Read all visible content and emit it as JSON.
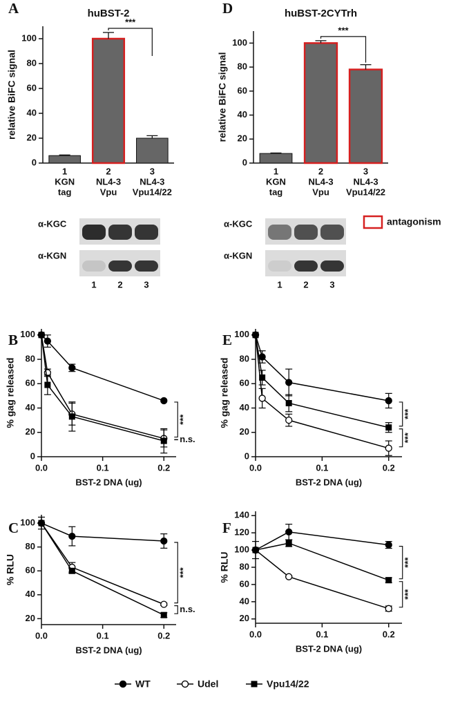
{
  "chart_data": [
    {
      "type": "bar",
      "panel": "A",
      "title": "huBST-2",
      "ylabel": "relative BiFC signal",
      "categories": [
        [
          "1",
          "KGN",
          "tag"
        ],
        [
          "2",
          "NL4-3",
          "Vpu"
        ],
        [
          "3",
          "NL4-3",
          "Vpu14/22"
        ]
      ],
      "values": [
        6,
        100,
        20
      ],
      "errors": [
        0.5,
        5,
        2
      ],
      "color": "#666666",
      "outline": [
        false,
        true,
        false
      ],
      "ylim": [
        0,
        110
      ],
      "yticks": [
        0,
        20,
        40,
        60,
        80,
        100
      ],
      "annotations": [
        {
          "text": "***",
          "between": [
            1,
            2
          ]
        }
      ]
    },
    {
      "type": "bar",
      "panel": "D",
      "title": "huBST-2CYTrh",
      "ylabel": "relative BiFC signal",
      "categories": [
        [
          "1",
          "KGN",
          "tag"
        ],
        [
          "2",
          "NL4-3",
          "Vpu"
        ],
        [
          "3",
          "NL4-3",
          "Vpu14/22"
        ]
      ],
      "values": [
        8,
        100,
        78
      ],
      "errors": [
        0.4,
        2,
        4
      ],
      "color": "#666666",
      "outline": [
        false,
        true,
        true
      ],
      "ylim": [
        0,
        110
      ],
      "yticks": [
        0,
        20,
        40,
        60,
        80,
        100
      ],
      "annotations": [
        {
          "text": "***",
          "between": [
            1,
            2
          ]
        }
      ]
    },
    {
      "type": "line",
      "panel": "B",
      "ylabel": "% gag released",
      "xlabel": "BST-2 DNA (ug)",
      "x": [
        0,
        0.01,
        0.05,
        0.2
      ],
      "series": [
        {
          "name": "WT",
          "marker": "filled-circle",
          "color": "#000000",
          "values": [
            100,
            95,
            73,
            46
          ],
          "errors": [
            0,
            5,
            3,
            0
          ]
        },
        {
          "name": "Udel",
          "marker": "open-circle",
          "color": "#000000",
          "values": [
            100,
            69,
            35,
            15
          ],
          "errors": [
            0,
            3,
            9,
            7
          ]
        },
        {
          "name": "Vpu14/22",
          "marker": "filled-square",
          "color": "#000000",
          "values": [
            100,
            59,
            33,
            13
          ],
          "errors": [
            0,
            8,
            12,
            10
          ]
        }
      ],
      "xlim": [
        0,
        0.22
      ],
      "ylim": [
        0,
        105
      ],
      "xticks": [
        {
          "value": 0,
          "label": "0.0"
        },
        0.1,
        0.2
      ],
      "yticks": [
        0,
        20,
        40,
        60,
        80,
        100
      ],
      "annotations": [
        {
          "text": "***",
          "between": [
            0,
            1
          ]
        },
        {
          "text": "n.s.",
          "between": [
            1,
            2
          ]
        }
      ]
    },
    {
      "type": "line",
      "panel": "E",
      "ylabel": "% gag released",
      "xlabel": "BST-2 DNA (ug)",
      "x": [
        0,
        0.01,
        0.05,
        0.2
      ],
      "series": [
        {
          "name": "WT",
          "marker": "filled-circle",
          "color": "#000000",
          "values": [
            100,
            82,
            61,
            46
          ],
          "errors": [
            0,
            5,
            11,
            6
          ]
        },
        {
          "name": "Udel",
          "marker": "open-circle",
          "color": "#000000",
          "values": [
            100,
            48,
            30,
            7
          ],
          "errors": [
            0,
            8,
            5,
            6
          ]
        },
        {
          "name": "Vpu14/22",
          "marker": "filled-square",
          "color": "#000000",
          "values": [
            100,
            65,
            44,
            24
          ],
          "errors": [
            0,
            6,
            7,
            4
          ]
        }
      ],
      "xlim": [
        0,
        0.22
      ],
      "ylim": [
        0,
        105
      ],
      "xticks": [
        {
          "value": 0,
          "label": "0.0"
        },
        0.1,
        0.2
      ],
      "yticks": [
        0,
        20,
        40,
        60,
        80,
        100
      ],
      "annotations": [
        {
          "text": "***",
          "between": [
            0,
            2
          ]
        },
        {
          "text": "***",
          "between": [
            2,
            1
          ]
        }
      ]
    },
    {
      "type": "line",
      "panel": "C",
      "ylabel": "% RLU",
      "xlabel": "BST-2 DNA (ug)",
      "x": [
        0,
        0.05,
        0.2
      ],
      "series": [
        {
          "name": "WT",
          "marker": "filled-circle",
          "color": "#000000",
          "values": [
            100,
            89,
            85
          ],
          "errors": [
            0,
            8,
            6
          ]
        },
        {
          "name": "Udel",
          "marker": "open-circle",
          "color": "#000000",
          "values": [
            100,
            63,
            32
          ],
          "errors": [
            5,
            4,
            1
          ]
        },
        {
          "name": "Vpu14/22",
          "marker": "filled-square",
          "color": "#000000",
          "values": [
            100,
            60,
            23
          ],
          "errors": [
            0,
            2,
            2
          ]
        }
      ],
      "xlim": [
        0,
        0.22
      ],
      "ylim": [
        15,
        107
      ],
      "xticks": [
        {
          "value": 0,
          "label": "0.0"
        },
        0.1,
        0.2
      ],
      "yticks": [
        20,
        40,
        60,
        80,
        100
      ],
      "annotations": [
        {
          "text": "***",
          "between": [
            0,
            1
          ]
        },
        {
          "text": "n.s.",
          "between": [
            1,
            2
          ]
        }
      ]
    },
    {
      "type": "line",
      "panel": "F",
      "ylabel": "% RLU",
      "xlabel": "BST-2 DNA (ug)",
      "x": [
        0,
        0.05,
        0.2
      ],
      "series": [
        {
          "name": "WT",
          "marker": "filled-circle",
          "color": "#000000",
          "values": [
            100,
            121,
            106
          ],
          "errors": [
            0,
            9,
            4
          ]
        },
        {
          "name": "Udel",
          "marker": "open-circle",
          "color": "#000000",
          "values": [
            100,
            69,
            32
          ],
          "errors": [
            10,
            1,
            3
          ]
        },
        {
          "name": "Vpu14/22",
          "marker": "filled-square",
          "color": "#000000",
          "values": [
            100,
            108,
            65
          ],
          "errors": [
            0,
            4,
            3
          ]
        }
      ],
      "xlim": [
        0,
        0.22
      ],
      "ylim": [
        15,
        145
      ],
      "xticks": [
        {
          "value": 0,
          "label": "0.0"
        },
        0.1,
        0.2
      ],
      "yticks": [
        20,
        40,
        60,
        80,
        100,
        120,
        140
      ],
      "annotations": [
        {
          "text": "***",
          "between": [
            0,
            2
          ]
        },
        {
          "text": "***",
          "between": [
            2,
            1
          ]
        }
      ]
    }
  ],
  "blots": [
    {
      "rows": [
        "α-KGC",
        "α-KGN"
      ],
      "lanes": [
        "1",
        "2",
        "3"
      ]
    },
    {
      "rows": [
        "α-KGC",
        "α-KGN"
      ],
      "lanes": [
        "1",
        "2",
        "3"
      ]
    }
  ],
  "highlight_legend": {
    "label": "antagonism",
    "color": "#d62020"
  }
}
